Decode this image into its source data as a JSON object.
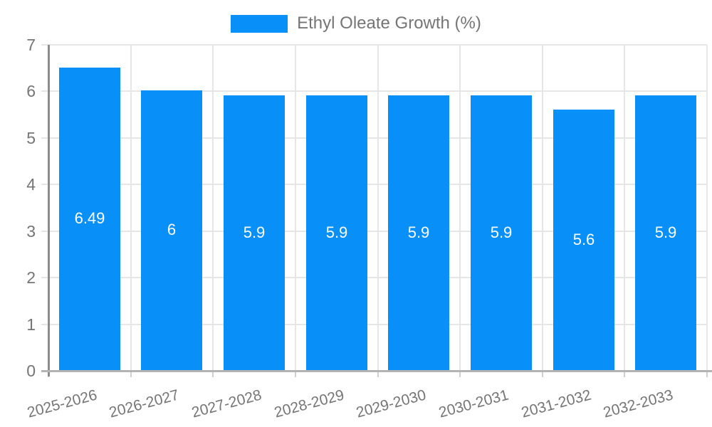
{
  "legend": {
    "label": "Ethyl Oleate Growth (%)"
  },
  "colors": {
    "bar": "#0990f8",
    "grid": "#e6e6e6",
    "y_axis_line": "#8c8c8c",
    "baseline": "#b3b3b3",
    "axis_text": "#757575",
    "bar_label_text": "#ffffff",
    "background": "#ffffff"
  },
  "chart_data": {
    "type": "bar",
    "title": "",
    "xlabel": "",
    "ylabel": "",
    "legend_position": "top",
    "legend_entries": [
      "Ethyl Oleate Growth (%)"
    ],
    "grid": true,
    "categories": [
      "2025-2026",
      "2026-2027",
      "2027-2028",
      "2028-2029",
      "2029-2030",
      "2030-2031",
      "2031-2032",
      "2032-2033"
    ],
    "values": [
      6.49,
      6,
      5.9,
      5.9,
      5.9,
      5.9,
      5.6,
      5.9
    ],
    "bar_labels": [
      "6.49",
      "6",
      "5.9",
      "5.9",
      "5.9",
      "5.9",
      "5.6",
      "5.9"
    ],
    "ylim": [
      0,
      7
    ],
    "y_ticks": [
      0,
      1,
      2,
      3,
      4,
      5,
      6,
      7
    ]
  }
}
